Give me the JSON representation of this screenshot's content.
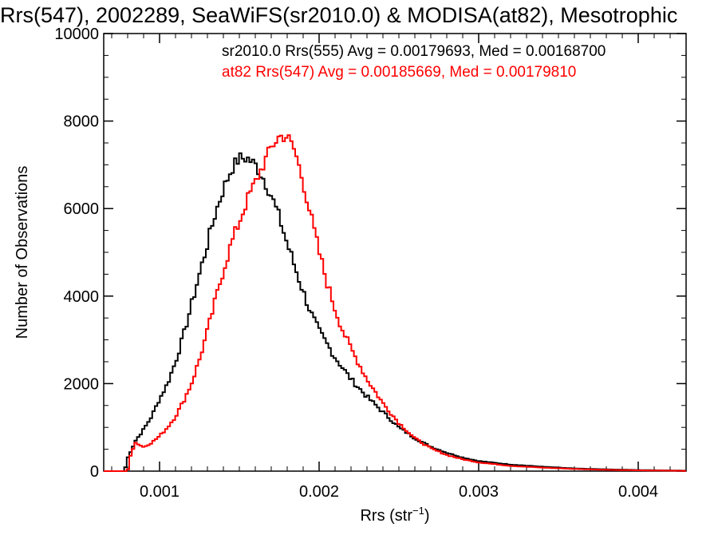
{
  "chart_data": {
    "type": "histogram",
    "title": "Rrs(547), 2002289, SeaWiFS(sr2010.0) & MODISA(at82), Mesotrophic",
    "xlabel_main": "Rrs (str",
    "xlabel_sup": "−1",
    "xlabel_close": ")",
    "ylabel": "Number of Observations",
    "xlim": [
      0.00065,
      0.0043
    ],
    "ylim": [
      0,
      10000
    ],
    "x_ticks": [
      0.001,
      0.002,
      0.003,
      0.004
    ],
    "x_tick_labels": [
      "0.001",
      "0.002",
      "0.003",
      "0.004"
    ],
    "y_ticks": [
      0,
      2000,
      4000,
      6000,
      8000,
      10000
    ],
    "y_tick_labels": [
      "0",
      "2000",
      "4000",
      "6000",
      "8000",
      "10000"
    ],
    "grid": false,
    "legend_placement": "top-right",
    "series": [
      {
        "label": "sr2010.0 Rrs(555) Avg = 0.00179693, Med = 0.00168700",
        "color": "#000000",
        "points": [
          [
            0.00065,
            0
          ],
          [
            0.00078,
            0
          ],
          [
            0.0008,
            300
          ],
          [
            0.00085,
            700
          ],
          [
            0.0009,
            950
          ],
          [
            0.00095,
            1250
          ],
          [
            0.001,
            1650
          ],
          [
            0.00105,
            2000
          ],
          [
            0.0011,
            2500
          ],
          [
            0.00115,
            3100
          ],
          [
            0.0012,
            3800
          ],
          [
            0.00125,
            4500
          ],
          [
            0.0013,
            5200
          ],
          [
            0.00135,
            5900
          ],
          [
            0.0014,
            6450
          ],
          [
            0.00145,
            6900
          ],
          [
            0.0015,
            7150
          ],
          [
            0.00155,
            7150
          ],
          [
            0.0016,
            7000
          ],
          [
            0.00165,
            6700
          ],
          [
            0.0017,
            6300
          ],
          [
            0.00175,
            5800
          ],
          [
            0.0018,
            5200
          ],
          [
            0.00185,
            4650
          ],
          [
            0.0019,
            4100
          ],
          [
            0.00195,
            3600
          ],
          [
            0.002,
            3200
          ],
          [
            0.0021,
            2600
          ],
          [
            0.0022,
            2100
          ],
          [
            0.0023,
            1700
          ],
          [
            0.0024,
            1350
          ],
          [
            0.0025,
            1000
          ],
          [
            0.0026,
            750
          ],
          [
            0.0027,
            560
          ],
          [
            0.0028,
            420
          ],
          [
            0.0029,
            310
          ],
          [
            0.003,
            230
          ],
          [
            0.0032,
            150
          ],
          [
            0.0034,
            100
          ],
          [
            0.0036,
            60
          ],
          [
            0.0038,
            40
          ],
          [
            0.004,
            25
          ],
          [
            0.0042,
            15
          ],
          [
            0.0043,
            10
          ]
        ]
      },
      {
        "label": "at82 Rrs(547) Avg = 0.00185669, Med = 0.00179810",
        "color": "#ff0000",
        "points": [
          [
            0.00065,
            0
          ],
          [
            0.0008,
            0
          ],
          [
            0.00082,
            400
          ],
          [
            0.00085,
            650
          ],
          [
            0.0009,
            550
          ],
          [
            0.00095,
            650
          ],
          [
            0.001,
            800
          ],
          [
            0.00105,
            1000
          ],
          [
            0.0011,
            1250
          ],
          [
            0.00115,
            1600
          ],
          [
            0.0012,
            2000
          ],
          [
            0.00125,
            2550
          ],
          [
            0.0013,
            3200
          ],
          [
            0.00135,
            3900
          ],
          [
            0.0014,
            4600
          ],
          [
            0.00145,
            5200
          ],
          [
            0.0015,
            5700
          ],
          [
            0.00155,
            6200
          ],
          [
            0.0016,
            6600
          ],
          [
            0.00165,
            7000
          ],
          [
            0.0017,
            7400
          ],
          [
            0.00175,
            7650
          ],
          [
            0.0018,
            7650
          ],
          [
            0.00185,
            7300
          ],
          [
            0.0019,
            6600
          ],
          [
            0.00195,
            5800
          ],
          [
            0.002,
            5000
          ],
          [
            0.00205,
            4300
          ],
          [
            0.0021,
            3700
          ],
          [
            0.00215,
            3200
          ],
          [
            0.0022,
            2800
          ],
          [
            0.0023,
            2100
          ],
          [
            0.0024,
            1550
          ],
          [
            0.0025,
            1100
          ],
          [
            0.0026,
            750
          ],
          [
            0.0027,
            520
          ],
          [
            0.0028,
            370
          ],
          [
            0.0029,
            270
          ],
          [
            0.003,
            200
          ],
          [
            0.0032,
            120
          ],
          [
            0.0034,
            80
          ],
          [
            0.0036,
            50
          ],
          [
            0.0038,
            30
          ],
          [
            0.004,
            18
          ],
          [
            0.0042,
            10
          ],
          [
            0.0043,
            6
          ]
        ]
      }
    ]
  }
}
